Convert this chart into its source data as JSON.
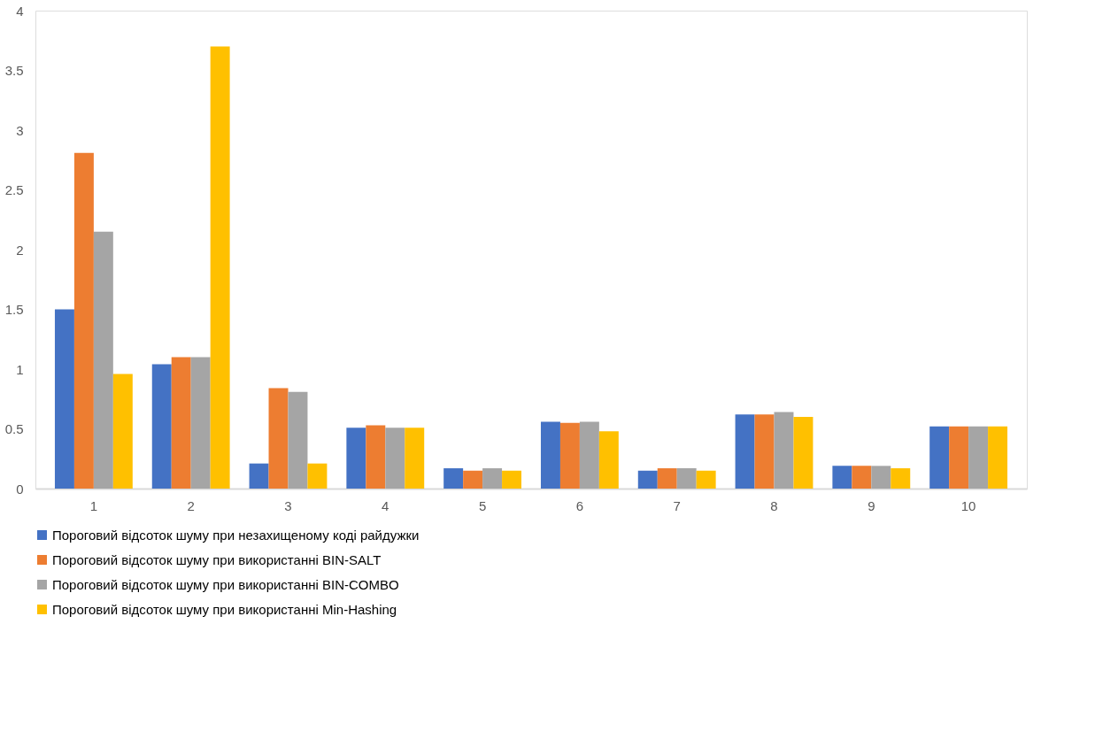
{
  "chart_data": {
    "type": "bar",
    "categories": [
      "1",
      "2",
      "3",
      "4",
      "5",
      "6",
      "7",
      "8",
      "9",
      "10"
    ],
    "series": [
      {
        "name": "Пороговий відсоток шуму при незахищеному коді райдужки",
        "color": "#4472c4",
        "values": [
          1.5,
          1.04,
          0.21,
          0.51,
          0.17,
          0.56,
          0.15,
          0.62,
          0.19,
          0.52
        ]
      },
      {
        "name": "Пороговий відсоток шуму при використанні BIN-SALT",
        "color": "#ed7d31",
        "values": [
          2.81,
          1.1,
          0.84,
          0.53,
          0.15,
          0.55,
          0.17,
          0.62,
          0.19,
          0.52
        ]
      },
      {
        "name": "Пороговий відсоток шуму при використанні BIN-COMBO",
        "color": "#a5a5a5",
        "values": [
          2.15,
          1.1,
          0.81,
          0.51,
          0.17,
          0.56,
          0.17,
          0.64,
          0.19,
          0.52
        ]
      },
      {
        "name": "Пороговий відсоток шуму при використанні Min-Hashing",
        "color": "#ffc000",
        "values": [
          0.96,
          3.7,
          0.21,
          0.51,
          0.15,
          0.48,
          0.15,
          0.6,
          0.17,
          0.52
        ]
      }
    ],
    "ylim": [
      0,
      4
    ],
    "yticks": [
      0,
      0.5,
      1,
      1.5,
      2,
      2.5,
      3,
      3.5,
      4
    ],
    "grid": false,
    "legend": "bottom"
  }
}
